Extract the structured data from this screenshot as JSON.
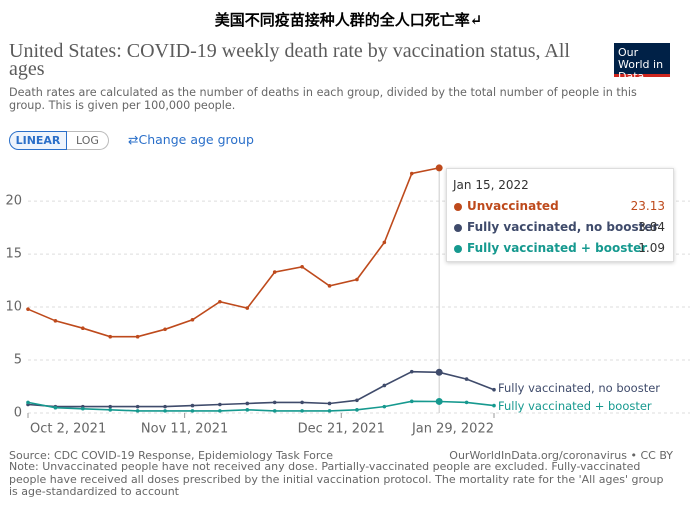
{
  "page_title": "美国不同疫苗接种人群的全人口死亡率↵",
  "chart_data": {
    "type": "line",
    "title": "United States: COVID-19 weekly death rate by vaccination status, All ages",
    "subtitle": "Death rates are calculated as the number of deaths in each group, divided by the total number of people in this group. This is given per 100,000 people.",
    "logo": "Our World in Data",
    "buttons": [
      "LINEAR",
      "LOG"
    ],
    "age_button": "Change age group",
    "source": "Source: CDC COVID-19 Response, Epidemiology Task Force",
    "license": "OurWorldInData.org/coronavirus • CC BY",
    "note": "Note: Unvaccinated people have not received any dose. Partially-vaccinated people are excluded. Fully-vaccinated people have received all doses prescribed by the initial vaccination protocol. The mortality rate for the 'All ages' group is age-standardized to account",
    "x": [
      "Oct 2, 2021",
      "Oct 9, 2021",
      "Oct 16, 2021",
      "Oct 23, 2021",
      "Oct 30, 2021",
      "Nov 6, 2021",
      "Nov 13, 2021",
      "Nov 20, 2021",
      "Nov 27, 2021",
      "Dec 4, 2021",
      "Dec 11, 2021",
      "Dec 18, 2021",
      "Dec 25, 2021",
      "Jan 1, 2022",
      "Jan 8, 2022",
      "Jan 15, 2022",
      "Jan 22, 2022",
      "Jan 29, 2022"
    ],
    "xlim": [
      "Oct 2, 2021",
      "Jan 29, 2022"
    ],
    "xticks": [
      "Oct 2, 2021",
      "Nov 11, 2021",
      "Dec 21, 2021",
      "Jan 29, 2022"
    ],
    "ylim": [
      0,
      23.5
    ],
    "yticks": [
      0,
      5,
      10,
      15,
      20
    ],
    "grid": true,
    "hover_index": 15,
    "series": [
      {
        "name": "Unvaccinated",
        "color": "#be4a1c",
        "values": [
          9.8,
          8.7,
          8.0,
          7.2,
          7.2,
          7.9,
          8.8,
          10.5,
          9.9,
          13.3,
          13.8,
          12.0,
          12.6,
          16.1,
          22.6,
          23.13,
          null,
          null
        ]
      },
      {
        "name": "Fully vaccinated, no booster",
        "color": "#3f4b6b",
        "values": [
          0.8,
          0.6,
          0.6,
          0.6,
          0.6,
          0.6,
          0.7,
          0.8,
          0.9,
          1.0,
          1.0,
          0.9,
          1.2,
          2.6,
          3.9,
          3.84,
          3.2,
          2.2
        ]
      },
      {
        "name": "Fully vaccinated + booster",
        "color": "#16998f",
        "values": [
          1.0,
          0.5,
          0.4,
          0.3,
          0.2,
          0.2,
          0.2,
          0.2,
          0.3,
          0.2,
          0.2,
          0.2,
          0.3,
          0.6,
          1.1,
          1.09,
          1.0,
          0.7
        ]
      }
    ]
  }
}
